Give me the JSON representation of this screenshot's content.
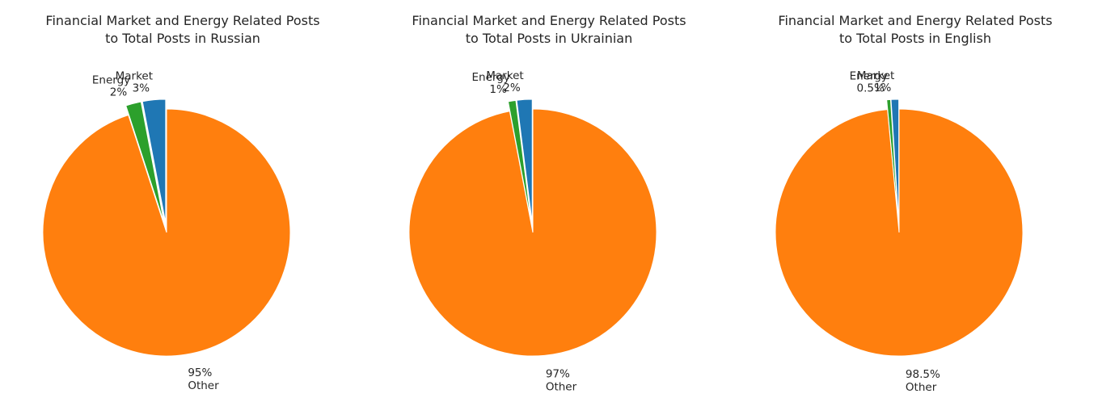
{
  "chart_data": [
    {
      "type": "pie",
      "title": [
        "Financial Market and Energy Related Posts",
        "to Total Posts in Russian"
      ],
      "slices": [
        {
          "label": "Market",
          "value": 3,
          "pct_text": "3%",
          "color": "#1f77b4",
          "exploded": true
        },
        {
          "label": "Energy",
          "value": 2,
          "pct_text": "2%",
          "color": "#2ca02c",
          "exploded": true
        },
        {
          "label": "Other",
          "value": 95,
          "pct_text": "95%",
          "color": "#ff7f0e",
          "exploded": false
        }
      ]
    },
    {
      "type": "pie",
      "title": [
        "Financial Market and Energy Related Posts",
        "to Total Posts in Ukrainian"
      ],
      "slices": [
        {
          "label": "Market",
          "value": 2,
          "pct_text": "2%",
          "color": "#1f77b4",
          "exploded": true
        },
        {
          "label": "Energy",
          "value": 1,
          "pct_text": "1%",
          "color": "#2ca02c",
          "exploded": true
        },
        {
          "label": "Other",
          "value": 97,
          "pct_text": "97%",
          "color": "#ff7f0e",
          "exploded": false
        }
      ]
    },
    {
      "type": "pie",
      "title": [
        "Financial Market and Energy Related Posts",
        "to Total Posts in English"
      ],
      "slices": [
        {
          "label": "Market",
          "value": 1,
          "pct_text": "1%",
          "color": "#1f77b4",
          "exploded": true
        },
        {
          "label": "Energy",
          "value": 0.5,
          "pct_text": "0.5%",
          "color": "#2ca02c",
          "exploded": true
        },
        {
          "label": "Other",
          "value": 98.5,
          "pct_text": "98.5%",
          "color": "#ff7f0e",
          "exploded": false
        }
      ]
    }
  ]
}
